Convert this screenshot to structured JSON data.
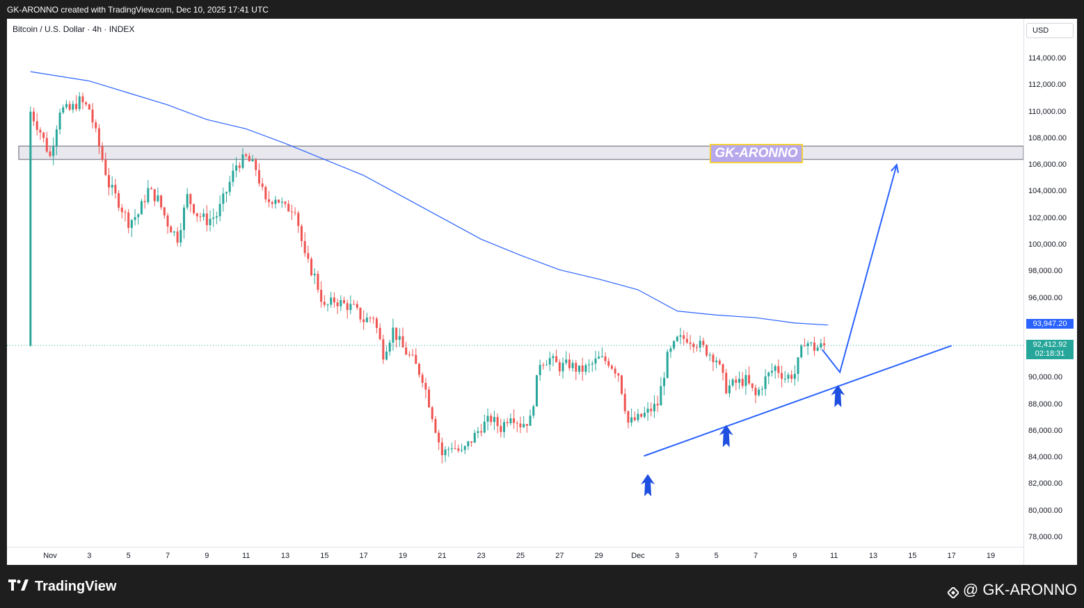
{
  "banner": "GK-ARONNO created with TradingView.com, Dec 10, 2025 17:41 UTC",
  "symbol_title": "Bitcoin / U.S. Dollar · 4h · INDEX",
  "currency": "USD",
  "watermark": "GK-ARONNO",
  "branding": {
    "logo_text": "TradingView",
    "author": "@ GK-ARONNO"
  },
  "price_tags": {
    "ma": {
      "value": "93,947.20",
      "color": "#2962ff"
    },
    "last": {
      "value": "92,412.92",
      "countdown": "02:18:31",
      "color": "#26a69a"
    }
  },
  "colors": {
    "up": "#26a69a",
    "down": "#ef5350",
    "ma": "#2962ff",
    "annotation": "#2962ff"
  },
  "chart_data": {
    "type": "candlestick",
    "symbol": "Bitcoin / U.S. Dollar",
    "interval": "4h",
    "ylim": [
      77000,
      117000
    ],
    "y_ticks": [
      78000,
      80000,
      82000,
      84000,
      86000,
      88000,
      90000,
      92000,
      94000,
      96000,
      98000,
      100000,
      102000,
      104000,
      106000,
      108000,
      110000,
      112000,
      114000
    ],
    "y_tick_labels": [
      "78,000.00",
      "80,000.00",
      "82,000.00",
      "84,000.00",
      "86,000.00",
      "88,000.00",
      "90,000.00",
      "92,000.00",
      "94,000.00",
      "96,000.00",
      "98,000.00",
      "100,000.00",
      "102,000.00",
      "104,000.00",
      "106,000.00",
      "108,000.00",
      "110,000.00",
      "112,000.00",
      "114,000.00"
    ],
    "x_range_days": [
      0,
      50
    ],
    "x_ticks": [
      {
        "day": 1,
        "label": "Nov"
      },
      {
        "day": 3,
        "label": "3"
      },
      {
        "day": 5,
        "label": "5"
      },
      {
        "day": 7,
        "label": "7"
      },
      {
        "day": 9,
        "label": "9"
      },
      {
        "day": 11,
        "label": "11"
      },
      {
        "day": 13,
        "label": "13"
      },
      {
        "day": 15,
        "label": "15"
      },
      {
        "day": 17,
        "label": "17"
      },
      {
        "day": 19,
        "label": "19"
      },
      {
        "day": 21,
        "label": "21"
      },
      {
        "day": 23,
        "label": "23"
      },
      {
        "day": 25,
        "label": "25"
      },
      {
        "day": 27,
        "label": "27"
      },
      {
        "day": 29,
        "label": "29"
      },
      {
        "day": 31,
        "label": "Dec"
      },
      {
        "day": 33,
        "label": "3"
      },
      {
        "day": 35,
        "label": "5"
      },
      {
        "day": 37,
        "label": "7"
      },
      {
        "day": 39,
        "label": "9"
      },
      {
        "day": 41,
        "label": "11"
      },
      {
        "day": 43,
        "label": "13"
      },
      {
        "day": 45,
        "label": "15"
      },
      {
        "day": 47,
        "label": "17"
      },
      {
        "day": 49,
        "label": "19"
      }
    ],
    "close_path": [
      [
        0,
        110000
      ],
      [
        0.5,
        108500
      ],
      [
        1.0,
        106600
      ],
      [
        1.5,
        110200
      ],
      [
        2.0,
        110100
      ],
      [
        2.5,
        110800
      ],
      [
        3.0,
        110200
      ],
      [
        3.5,
        107400
      ],
      [
        4.0,
        104500
      ],
      [
        4.5,
        103200
      ],
      [
        5.0,
        101700
      ],
      [
        5.5,
        102300
      ],
      [
        6.0,
        104100
      ],
      [
        6.5,
        103400
      ],
      [
        7.0,
        101600
      ],
      [
        7.5,
        100500
      ],
      [
        8.0,
        103600
      ],
      [
        8.5,
        102300
      ],
      [
        9.0,
        101800
      ],
      [
        9.5,
        102200
      ],
      [
        10.0,
        104000
      ],
      [
        10.5,
        106000
      ],
      [
        11.0,
        106500
      ],
      [
        11.5,
        105700
      ],
      [
        12.0,
        103100
      ],
      [
        12.5,
        103600
      ],
      [
        13.0,
        102700
      ],
      [
        13.5,
        102800
      ],
      [
        14.0,
        99000
      ],
      [
        14.5,
        97600
      ],
      [
        15.0,
        95200
      ],
      [
        15.5,
        95800
      ],
      [
        16.0,
        95500
      ],
      [
        16.5,
        95200
      ],
      [
        17.0,
        94300
      ],
      [
        17.5,
        94600
      ],
      [
        18.0,
        91800
      ],
      [
        18.5,
        93600
      ],
      [
        19.0,
        92200
      ],
      [
        19.5,
        91300
      ],
      [
        20.0,
        90000
      ],
      [
        20.5,
        87200
      ],
      [
        21.0,
        84200
      ],
      [
        21.5,
        84900
      ],
      [
        22.0,
        84300
      ],
      [
        22.5,
        85300
      ],
      [
        23.0,
        86300
      ],
      [
        23.5,
        86900
      ],
      [
        24.0,
        86200
      ],
      [
        24.5,
        87300
      ],
      [
        25.0,
        86500
      ],
      [
        25.5,
        86800
      ],
      [
        26.0,
        91200
      ],
      [
        26.5,
        91400
      ],
      [
        27.0,
        90800
      ],
      [
        27.5,
        91000
      ],
      [
        28.0,
        90500
      ],
      [
        28.5,
        90800
      ],
      [
        29.0,
        91400
      ],
      [
        29.5,
        91200
      ],
      [
        30.0,
        90300
      ],
      [
        30.5,
        86600
      ],
      [
        31.0,
        86900
      ],
      [
        31.5,
        87400
      ],
      [
        32.0,
        88000
      ],
      [
        32.5,
        91500
      ],
      [
        33.0,
        92800
      ],
      [
        33.5,
        93000
      ],
      [
        34.0,
        92600
      ],
      [
        34.5,
        92000
      ],
      [
        35.0,
        91400
      ],
      [
        35.5,
        89200
      ],
      [
        36.0,
        89600
      ],
      [
        36.5,
        89800
      ],
      [
        37.0,
        88600
      ],
      [
        37.5,
        89900
      ],
      [
        38.0,
        90800
      ],
      [
        38.5,
        90000
      ],
      [
        39.0,
        90300
      ],
      [
        39.5,
        92800
      ],
      [
        40.0,
        92200
      ],
      [
        40.5,
        92400
      ]
    ],
    "close_path_note": "",
    "ma_line": [
      [
        0,
        113000
      ],
      [
        3,
        112300
      ],
      [
        5,
        111400
      ],
      [
        7,
        110500
      ],
      [
        9,
        109400
      ],
      [
        11,
        108700
      ],
      [
        13,
        107600
      ],
      [
        15,
        106400
      ],
      [
        17,
        105200
      ],
      [
        19,
        103600
      ],
      [
        21,
        102000
      ],
      [
        23,
        100400
      ],
      [
        25,
        99200
      ],
      [
        27,
        98100
      ],
      [
        29,
        97400
      ],
      [
        31,
        96600
      ],
      [
        33,
        95000
      ],
      [
        35,
        94700
      ],
      [
        37,
        94500
      ],
      [
        39,
        94100
      ],
      [
        40.7,
        93947
      ]
    ],
    "resistance_zone": [
      106400,
      107400
    ],
    "trendline": [
      [
        31.3,
        84100
      ],
      [
        47,
        92400
      ]
    ],
    "projection": [
      [
        40.4,
        92100
      ],
      [
        41.3,
        90400
      ],
      [
        44.2,
        106000
      ]
    ],
    "arrows": [
      [
        31.5,
        81800
      ],
      [
        35.5,
        85500
      ],
      [
        41.2,
        88500
      ]
    ],
    "last_price": 92412.92
  }
}
